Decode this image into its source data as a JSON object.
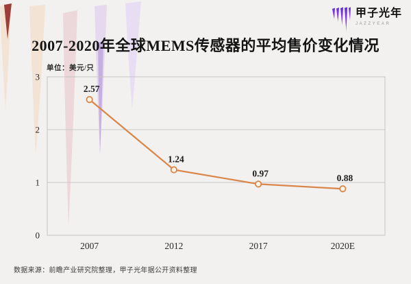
{
  "header": {
    "title": "2007-2020年全球MEMS传感器的平均售价变化情况"
  },
  "logo": {
    "name": "甲子光年",
    "subtitle": "JAZZYEAR",
    "icon": "brush-strokes-icon",
    "gradient_top": "#5b2ede",
    "gradient_bottom": "#c257d8"
  },
  "chart": {
    "unit_label": "单位：美元/只"
  },
  "chart_data": {
    "type": "line",
    "title": "2007-2020年全球MEMS传感器的平均售价变化情况",
    "unit": "美元/只",
    "categories": [
      "2007",
      "2012",
      "2017",
      "2020E"
    ],
    "values": [
      2.57,
      1.24,
      0.97,
      0.88
    ],
    "data_labels": [
      "2.57",
      "1.24",
      "0.97",
      "0.88"
    ],
    "ylim": [
      0,
      3
    ],
    "yticks": [
      0,
      1,
      2,
      3
    ],
    "grid": "horizontal",
    "legend": "none",
    "line_color": "#d8864a",
    "marker": "open-circle",
    "marker_fill": "#fdf4e4",
    "grid_color": "#c9c9c9",
    "border_color": "#c3c3c3",
    "text_color": "#242424"
  },
  "footer": {
    "source": "数据来源：前瞻产业研究院整理，甲子光年据公开资料整理"
  }
}
